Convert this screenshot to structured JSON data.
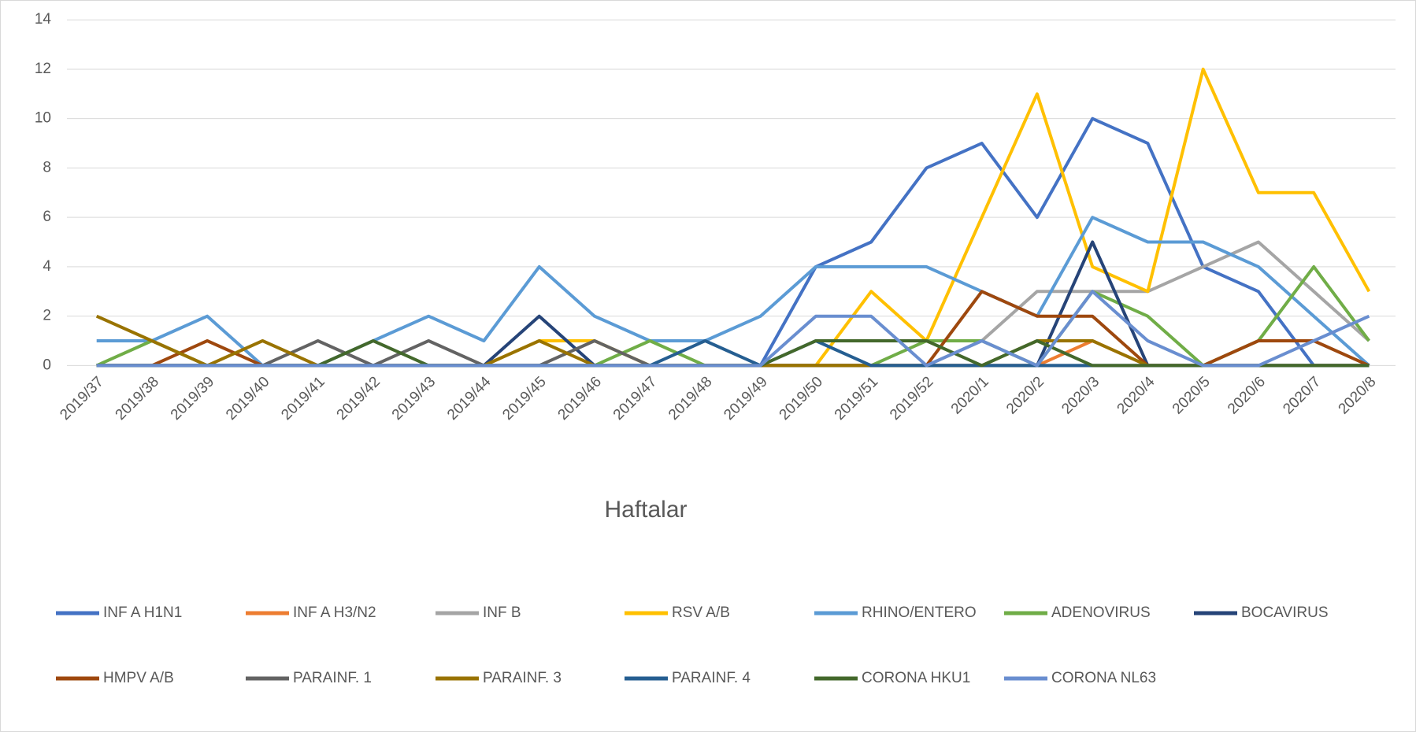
{
  "chart_data": {
    "type": "line",
    "x_label": "Haftalar",
    "categories": [
      "2019/37",
      "2019/38",
      "2019/39",
      "2019/40",
      "2019/41",
      "2019/42",
      "2019/43",
      "2019/44",
      "2019/45",
      "2019/46",
      "2019/47",
      "2019/48",
      "2019/49",
      "2019/50",
      "2019/51",
      "2019/52",
      "2020/1",
      "2020/2",
      "2020/3",
      "2020/4",
      "2020/5",
      "2020/6",
      "2020/7",
      "2020/8"
    ],
    "ylim": [
      0,
      14
    ],
    "yticks": [
      0,
      2,
      4,
      6,
      8,
      10,
      12,
      14
    ],
    "grid": true,
    "legend": "bottom",
    "series": [
      {
        "name": "INF A H1N1",
        "color": "#4472c4",
        "values": [
          0,
          0,
          0,
          0,
          0,
          0,
          0,
          0,
          0,
          0,
          0,
          0,
          0,
          4,
          5,
          8,
          9,
          6,
          10,
          9,
          4,
          3,
          0,
          0
        ]
      },
      {
        "name": "INF A H3/N2",
        "color": "#ed7d31",
        "values": [
          0,
          0,
          0,
          0,
          0,
          0,
          0,
          0,
          0,
          0,
          0,
          0,
          0,
          0,
          0,
          0,
          0,
          0,
          1,
          0,
          0,
          0,
          0,
          0
        ]
      },
      {
        "name": "INF B",
        "color": "#a5a5a5",
        "values": [
          0,
          0,
          0,
          0,
          0,
          0,
          0,
          0,
          0,
          0,
          0,
          0,
          0,
          0,
          0,
          0,
          1,
          3,
          3,
          3,
          4,
          5,
          3,
          1
        ]
      },
      {
        "name": "RSV A/B",
        "color": "#ffc000",
        "values": [
          0,
          0,
          0,
          0,
          0,
          0,
          0,
          0,
          1,
          1,
          0,
          0,
          0,
          0,
          3,
          1,
          6,
          11,
          4,
          3,
          12,
          7,
          7,
          3
        ]
      },
      {
        "name": "RHINO/ENTERO",
        "color": "#5b9bd5",
        "values": [
          1,
          1,
          2,
          0,
          0,
          1,
          2,
          1,
          4,
          2,
          1,
          1,
          2,
          4,
          4,
          4,
          3,
          2,
          6,
          5,
          5,
          4,
          2,
          0
        ]
      },
      {
        "name": "ADENOVIRUS",
        "color": "#70ad47",
        "values": [
          0,
          1,
          0,
          0,
          0,
          0,
          0,
          0,
          0,
          0,
          1,
          0,
          0,
          0,
          0,
          1,
          1,
          0,
          3,
          2,
          0,
          1,
          4,
          1
        ]
      },
      {
        "name": "BOCAVIRUS",
        "color": "#264478",
        "values": [
          0,
          0,
          0,
          0,
          0,
          0,
          0,
          0,
          2,
          0,
          0,
          0,
          0,
          0,
          0,
          0,
          0,
          0,
          5,
          0,
          0,
          0,
          0,
          0
        ]
      },
      {
        "name": "HMPV A/B",
        "color": "#9e480e",
        "values": [
          0,
          0,
          1,
          0,
          0,
          0,
          0,
          0,
          0,
          0,
          0,
          0,
          0,
          0,
          0,
          0,
          3,
          2,
          2,
          0,
          0,
          1,
          1,
          0
        ]
      },
      {
        "name": "PARAINF. 1",
        "color": "#636363",
        "values": [
          0,
          0,
          0,
          0,
          1,
          0,
          1,
          0,
          0,
          1,
          0,
          0,
          0,
          0,
          0,
          0,
          0,
          0,
          0,
          0,
          0,
          0,
          0,
          0
        ]
      },
      {
        "name": "PARAINF. 3",
        "color": "#997300",
        "values": [
          2,
          1,
          0,
          1,
          0,
          0,
          0,
          0,
          1,
          0,
          0,
          0,
          0,
          0,
          0,
          0,
          0,
          1,
          1,
          0,
          0,
          0,
          0,
          0
        ]
      },
      {
        "name": "PARAINF. 4",
        "color": "#255e91",
        "values": [
          0,
          0,
          0,
          0,
          0,
          0,
          0,
          0,
          0,
          0,
          0,
          1,
          0,
          1,
          0,
          0,
          0,
          0,
          0,
          0,
          0,
          0,
          0,
          0
        ]
      },
      {
        "name": "CORONA HKU1",
        "color": "#43682b",
        "values": [
          0,
          0,
          0,
          0,
          0,
          1,
          0,
          0,
          0,
          0,
          0,
          0,
          0,
          1,
          1,
          1,
          0,
          1,
          0,
          0,
          0,
          0,
          0,
          0
        ]
      },
      {
        "name": "CORONA NL63",
        "color": "#698ed0",
        "values": [
          0,
          0,
          0,
          0,
          0,
          0,
          0,
          0,
          0,
          0,
          0,
          0,
          0,
          2,
          2,
          0,
          1,
          0,
          3,
          1,
          0,
          0,
          1,
          2
        ]
      }
    ]
  }
}
